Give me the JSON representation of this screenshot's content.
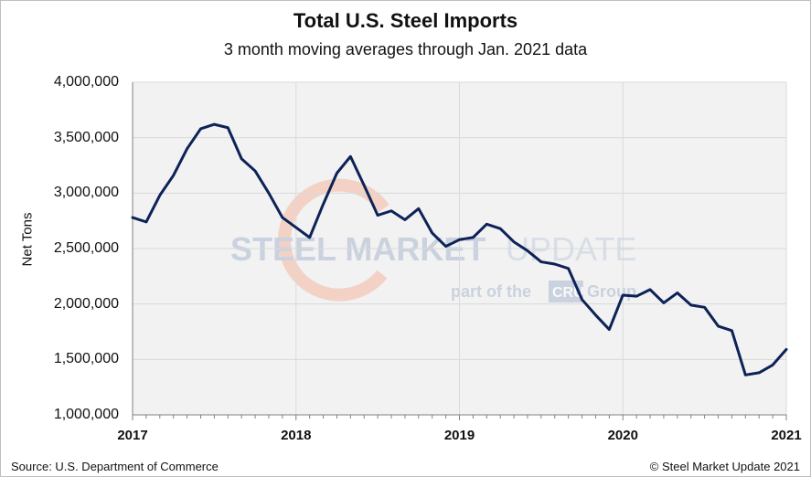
{
  "chart_data": {
    "type": "line",
    "title": "Total U.S. Steel Imports",
    "subtitle": "3 month moving averages through Jan. 2021 data",
    "xlabel": "",
    "ylabel": "Net Tons",
    "ylim": [
      1000000,
      4000000
    ],
    "yticks": [
      1000000,
      1500000,
      2000000,
      2500000,
      3000000,
      3500000,
      4000000
    ],
    "ytick_labels": [
      "1,000,000",
      "1,500,000",
      "2,000,000",
      "2,500,000",
      "3,000,000",
      "3,500,000",
      "4,000,000"
    ],
    "xlim": [
      "2017-01",
      "2021-01"
    ],
    "xtick_labels": [
      "2017",
      "2018",
      "2019",
      "2020",
      "2021"
    ],
    "grid": true,
    "legend": "none",
    "line_color": "#0d2257",
    "categories": [
      "2017-01",
      "2017-02",
      "2017-03",
      "2017-04",
      "2017-05",
      "2017-06",
      "2017-07",
      "2017-08",
      "2017-09",
      "2017-10",
      "2017-11",
      "2017-12",
      "2018-01",
      "2018-02",
      "2018-03",
      "2018-04",
      "2018-05",
      "2018-06",
      "2018-07",
      "2018-08",
      "2018-09",
      "2018-10",
      "2018-11",
      "2018-12",
      "2019-01",
      "2019-02",
      "2019-03",
      "2019-04",
      "2019-05",
      "2019-06",
      "2019-07",
      "2019-08",
      "2019-09",
      "2019-10",
      "2019-11",
      "2019-12",
      "2020-01",
      "2020-02",
      "2020-03",
      "2020-04",
      "2020-05",
      "2020-06",
      "2020-07",
      "2020-08",
      "2020-09",
      "2020-10",
      "2020-11",
      "2020-12",
      "2021-01"
    ],
    "series": [
      {
        "values": [
          2780000,
          2740000,
          2980000,
          3160000,
          3400000,
          3580000,
          3620000,
          3590000,
          3310000,
          3200000,
          3000000,
          2780000,
          2690000,
          2600000,
          2900000,
          3180000,
          3330000,
          3070000,
          2800000,
          2840000,
          2760000,
          2860000,
          2640000,
          2520000,
          2580000,
          2600000,
          2720000,
          2680000,
          2560000,
          2480000,
          2380000,
          2360000,
          2320000,
          2040000,
          1900000,
          1770000,
          2080000,
          2070000,
          2130000,
          2010000,
          2100000,
          1990000,
          1970000,
          1800000,
          1760000,
          1360000,
          1380000,
          1450000,
          1590000
        ]
      }
    ]
  },
  "watermark": {
    "brand_left": "STEEL MARKET",
    "brand_right": "UPDATE",
    "tagline_left": "part of the",
    "tagline_box": "CRU",
    "tagline_right": "Group"
  },
  "footer": {
    "source": "Source: U.S. Department of Commerce",
    "copyright": "© Steel Market Update 2021"
  }
}
